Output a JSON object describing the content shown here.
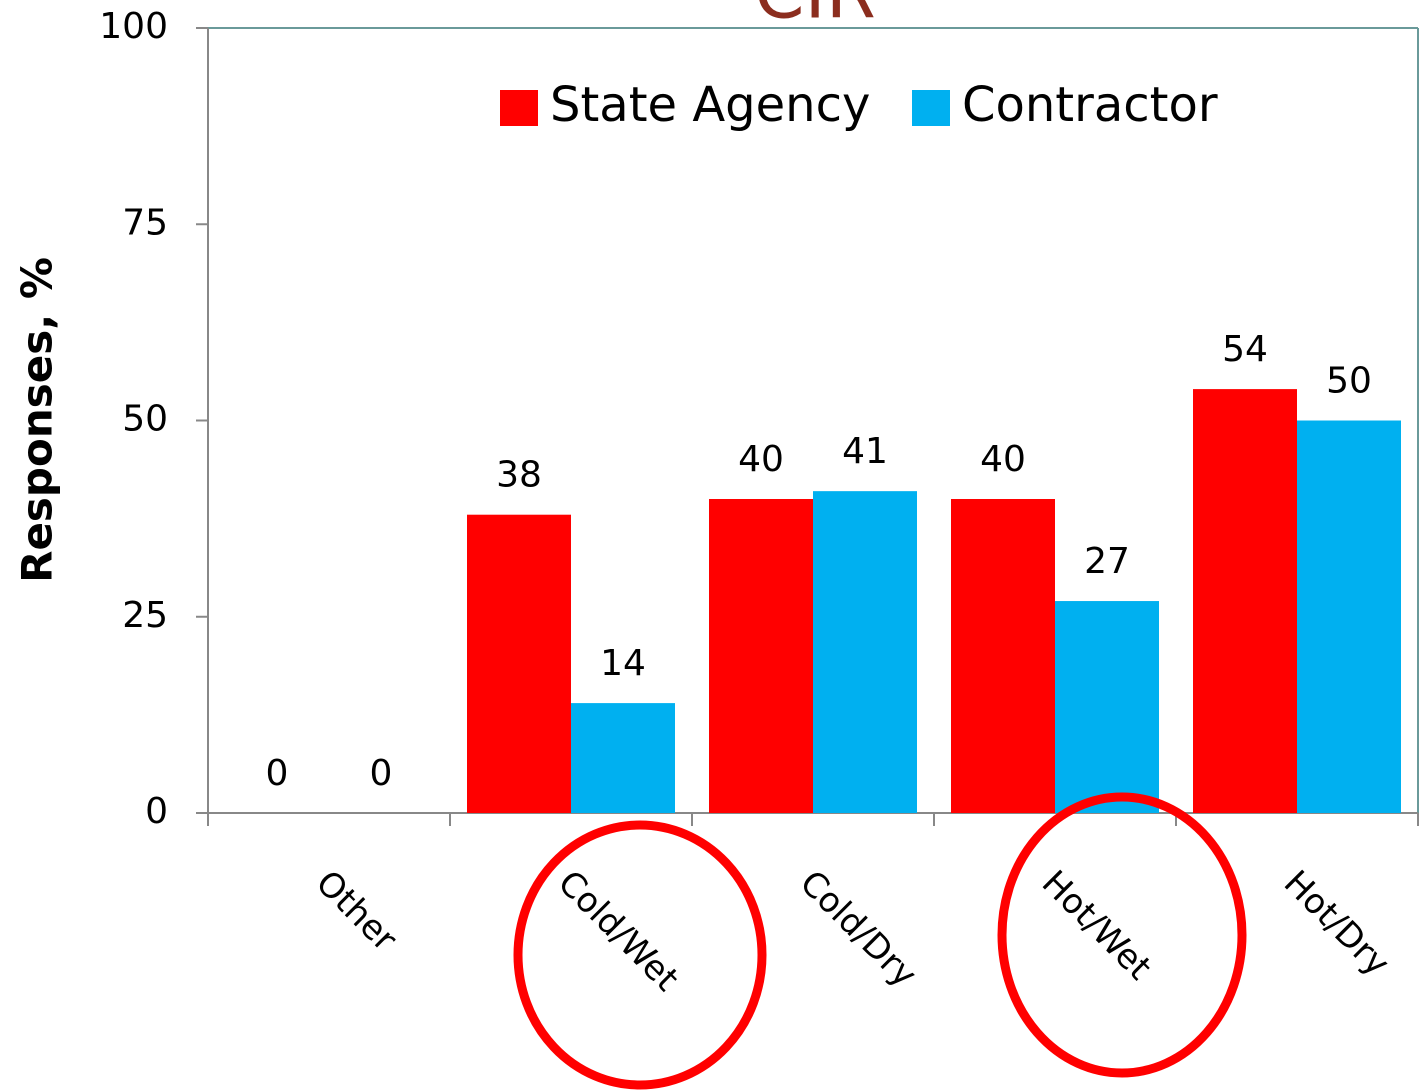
{
  "chart_data": {
    "type": "bar",
    "title": "CIR",
    "y_label": "Responses, %",
    "categories": [
      "Other",
      "Cold/Wet",
      "Cold/Dry",
      "Hot/Wet",
      "Hot/Dry"
    ],
    "series": [
      {
        "name": "State Agency",
        "color": "#ff0000",
        "values": [
          0,
          38,
          40,
          40,
          54
        ]
      },
      {
        "name": "Contractor",
        "color": "#00b0f0",
        "values": [
          0,
          14,
          41,
          27,
          50
        ]
      }
    ],
    "ylim": [
      0,
      100
    ],
    "yticks": [
      0,
      25,
      50,
      75,
      100
    ],
    "legend": "top"
  }
}
